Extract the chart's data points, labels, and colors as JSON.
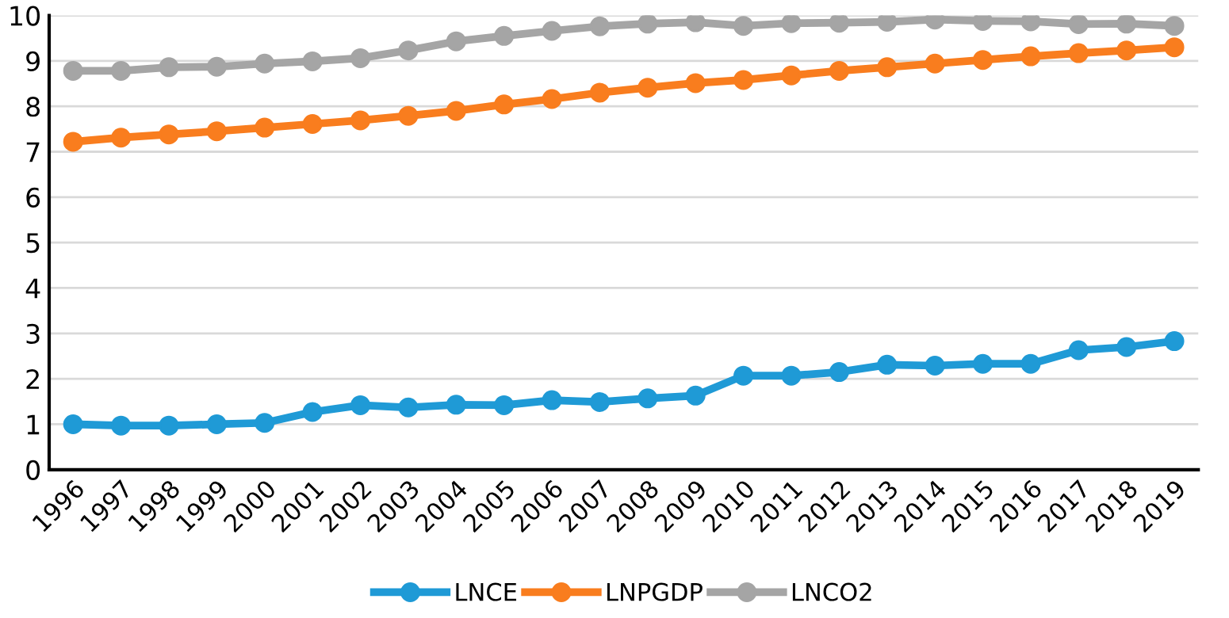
{
  "chart_data": {
    "type": "line",
    "categories": [
      "1996",
      "1997",
      "1998",
      "1999",
      "2000",
      "2001",
      "2002",
      "2003",
      "2004",
      "2005",
      "2006",
      "2007",
      "2008",
      "2009",
      "2010",
      "2011",
      "2012",
      "2013",
      "2014",
      "2015",
      "2016",
      "2017",
      "2018",
      "2019"
    ],
    "series": [
      {
        "name": "LNCE",
        "color": "#1f9ad6",
        "values": [
          1.0,
          0.97,
          0.97,
          1.0,
          1.03,
          1.27,
          1.42,
          1.37,
          1.43,
          1.42,
          1.53,
          1.49,
          1.57,
          1.63,
          2.07,
          2.07,
          2.15,
          2.31,
          2.29,
          2.33,
          2.33,
          2.63,
          2.7,
          2.83
        ]
      },
      {
        "name": "LNPGDP",
        "color": "#f97d1e",
        "values": [
          7.22,
          7.31,
          7.38,
          7.45,
          7.53,
          7.61,
          7.69,
          7.79,
          7.9,
          8.04,
          8.16,
          8.3,
          8.41,
          8.51,
          8.58,
          8.68,
          8.78,
          8.86,
          8.94,
          9.02,
          9.1,
          9.17,
          9.23,
          9.3
        ]
      },
      {
        "name": "LNCO2",
        "color": "#a5a5a5",
        "values": [
          8.78,
          8.78,
          8.86,
          8.87,
          8.94,
          8.99,
          9.06,
          9.23,
          9.43,
          9.55,
          9.66,
          9.76,
          9.82,
          9.85,
          9.77,
          9.83,
          9.84,
          9.86,
          9.91,
          9.88,
          9.87,
          9.81,
          9.82,
          9.77
        ]
      }
    ],
    "ylim": [
      0,
      10
    ],
    "yticks": [
      0,
      1,
      2,
      3,
      4,
      5,
      6,
      7,
      8,
      9,
      10
    ],
    "grid": "y",
    "legend": "bottom",
    "marker": "circle",
    "line_style": "solid"
  }
}
